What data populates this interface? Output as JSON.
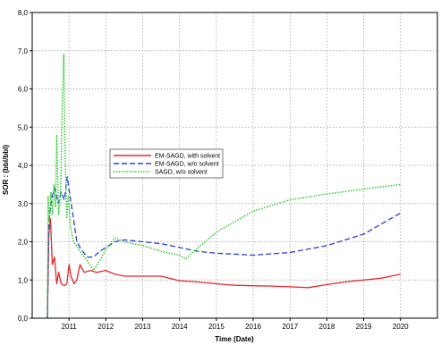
{
  "chart_data": {
    "type": "line",
    "title": "",
    "xlabel": "Time (Date)",
    "ylabel": "SOR : (bbl/bbl)",
    "xlim": [
      "2010-01-01",
      "2021-01-01"
    ],
    "ylim": [
      0,
      8
    ],
    "grid": true,
    "legend_position": "center-left",
    "x_ticks": [
      "2011",
      "2012",
      "2013",
      "2014",
      "2015",
      "2016",
      "2017",
      "2018",
      "2019",
      "2020"
    ],
    "y_ticks": [
      "0,0",
      "1,0",
      "2,0",
      "3,0",
      "4,0",
      "5,0",
      "6,0",
      "7,0",
      "8,0"
    ],
    "series": [
      {
        "name": "EM-SAGD, with solvent",
        "color": "#e8262b",
        "dash": "solid",
        "points": [
          [
            "2010-06-01",
            0.0
          ],
          [
            "2010-06-15",
            2.2
          ],
          [
            "2010-07-01",
            2.6
          ],
          [
            "2010-07-20",
            1.4
          ],
          [
            "2010-08-10",
            1.6
          ],
          [
            "2010-09-01",
            0.9
          ],
          [
            "2010-09-20",
            1.2
          ],
          [
            "2010-10-15",
            0.9
          ],
          [
            "2010-11-15",
            0.85
          ],
          [
            "2010-12-10",
            0.9
          ],
          [
            "2011-01-01",
            1.4
          ],
          [
            "2011-01-20",
            1.1
          ],
          [
            "2011-02-20",
            0.9
          ],
          [
            "2011-03-20",
            1.0
          ],
          [
            "2011-04-20",
            1.4
          ],
          [
            "2011-06-01",
            1.2
          ],
          [
            "2011-08-01",
            1.25
          ],
          [
            "2011-10-01",
            1.2
          ],
          [
            "2012-01-01",
            1.25
          ],
          [
            "2012-04-01",
            1.15
          ],
          [
            "2012-07-01",
            1.1
          ],
          [
            "2013-01-01",
            1.1
          ],
          [
            "2013-07-01",
            1.1
          ],
          [
            "2014-01-01",
            0.98
          ],
          [
            "2014-07-01",
            0.95
          ],
          [
            "2015-01-01",
            0.9
          ],
          [
            "2015-07-01",
            0.86
          ],
          [
            "2016-01-01",
            0.85
          ],
          [
            "2016-07-01",
            0.84
          ],
          [
            "2017-01-01",
            0.82
          ],
          [
            "2017-07-01",
            0.8
          ],
          [
            "2018-01-01",
            0.88
          ],
          [
            "2018-07-01",
            0.95
          ],
          [
            "2019-01-01",
            1.0
          ],
          [
            "2019-07-01",
            1.05
          ],
          [
            "2020-01-01",
            1.15
          ]
        ]
      },
      {
        "name": "EM-SAGD, w/o solvent",
        "color": "#2a3fd8",
        "dash": "dashed",
        "points": [
          [
            "2010-06-01",
            0.0
          ],
          [
            "2010-06-15",
            2.5
          ],
          [
            "2010-07-01",
            2.9
          ],
          [
            "2010-07-20",
            3.2
          ],
          [
            "2010-08-15",
            3.4
          ],
          [
            "2010-09-15",
            3.0
          ],
          [
            "2010-10-15",
            3.3
          ],
          [
            "2010-11-15",
            3.1
          ],
          [
            "2010-12-15",
            3.7
          ],
          [
            "2011-01-10",
            3.2
          ],
          [
            "2011-02-15",
            2.6
          ],
          [
            "2011-03-20",
            2.0
          ],
          [
            "2011-05-01",
            1.8
          ],
          [
            "2011-07-01",
            1.6
          ],
          [
            "2011-09-01",
            1.6
          ],
          [
            "2011-11-01",
            1.75
          ],
          [
            "2012-01-01",
            1.85
          ],
          [
            "2012-04-01",
            2.0
          ],
          [
            "2012-07-01",
            2.05
          ],
          [
            "2013-01-01",
            2.0
          ],
          [
            "2013-07-01",
            1.95
          ],
          [
            "2014-01-01",
            1.85
          ],
          [
            "2014-07-01",
            1.75
          ],
          [
            "2015-01-01",
            1.7
          ],
          [
            "2016-01-01",
            1.65
          ],
          [
            "2017-01-01",
            1.72
          ],
          [
            "2018-01-01",
            1.9
          ],
          [
            "2019-01-01",
            2.2
          ],
          [
            "2020-01-01",
            2.75
          ]
        ]
      },
      {
        "name": "SAGD, w/o solvent",
        "color": "#22cc22",
        "dash": "dotted",
        "points": [
          [
            "2010-06-01",
            0.0
          ],
          [
            "2010-06-08",
            3.2
          ],
          [
            "2010-06-20",
            2.5
          ],
          [
            "2010-07-05",
            3.3
          ],
          [
            "2010-07-20",
            2.7
          ],
          [
            "2010-08-05",
            3.5
          ],
          [
            "2010-08-20",
            2.9
          ],
          [
            "2010-09-01",
            4.8
          ],
          [
            "2010-09-20",
            2.7
          ],
          [
            "2010-10-10",
            3.3
          ],
          [
            "2010-10-25",
            5.5
          ],
          [
            "2010-11-10",
            6.9
          ],
          [
            "2010-11-25",
            4.0
          ],
          [
            "2010-12-10",
            2.6
          ],
          [
            "2010-12-25",
            3.2
          ],
          [
            "2011-01-15",
            2.4
          ],
          [
            "2011-02-15",
            2.0
          ],
          [
            "2011-03-15",
            1.9
          ],
          [
            "2011-05-01",
            1.7
          ],
          [
            "2011-07-01",
            1.5
          ],
          [
            "2011-09-01",
            1.25
          ],
          [
            "2011-11-01",
            1.5
          ],
          [
            "2012-01-01",
            1.8
          ],
          [
            "2012-04-01",
            2.1
          ],
          [
            "2012-07-01",
            2.0
          ],
          [
            "2013-01-01",
            1.9
          ],
          [
            "2013-07-01",
            1.75
          ],
          [
            "2014-01-01",
            1.65
          ],
          [
            "2014-03-01",
            1.55
          ],
          [
            "2014-05-01",
            1.7
          ],
          [
            "2015-01-01",
            2.25
          ],
          [
            "2016-01-01",
            2.8
          ],
          [
            "2017-01-01",
            3.1
          ],
          [
            "2018-01-01",
            3.25
          ],
          [
            "2019-01-01",
            3.38
          ],
          [
            "2020-01-01",
            3.5
          ]
        ]
      }
    ]
  }
}
